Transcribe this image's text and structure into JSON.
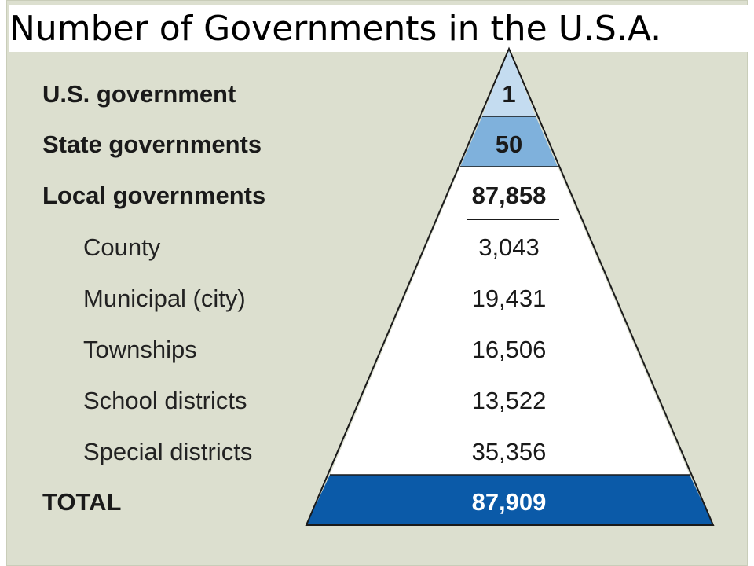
{
  "title": "Number of Governments in the U.S.A.",
  "colors": {
    "background": "#dcdfcf",
    "tier_top": "#c4dcf0",
    "tier_state": "#7fb1dc",
    "tier_local": "#ffffff",
    "tier_total": "#0b5aa8",
    "outline": "#1a1a1a"
  },
  "rows": [
    {
      "label": "U.S. government",
      "value": "1"
    },
    {
      "label": "State governments",
      "value": "50"
    },
    {
      "label": "Local governments",
      "value": "87,858"
    },
    {
      "label": "County",
      "value": "3,043"
    },
    {
      "label": "Municipal (city)",
      "value": "19,431"
    },
    {
      "label": "Townships",
      "value": "16,506"
    },
    {
      "label": "School districts",
      "value": "13,522"
    },
    {
      "label": "Special districts",
      "value": "35,356"
    },
    {
      "label": "TOTAL",
      "value": "87,909"
    }
  ]
}
